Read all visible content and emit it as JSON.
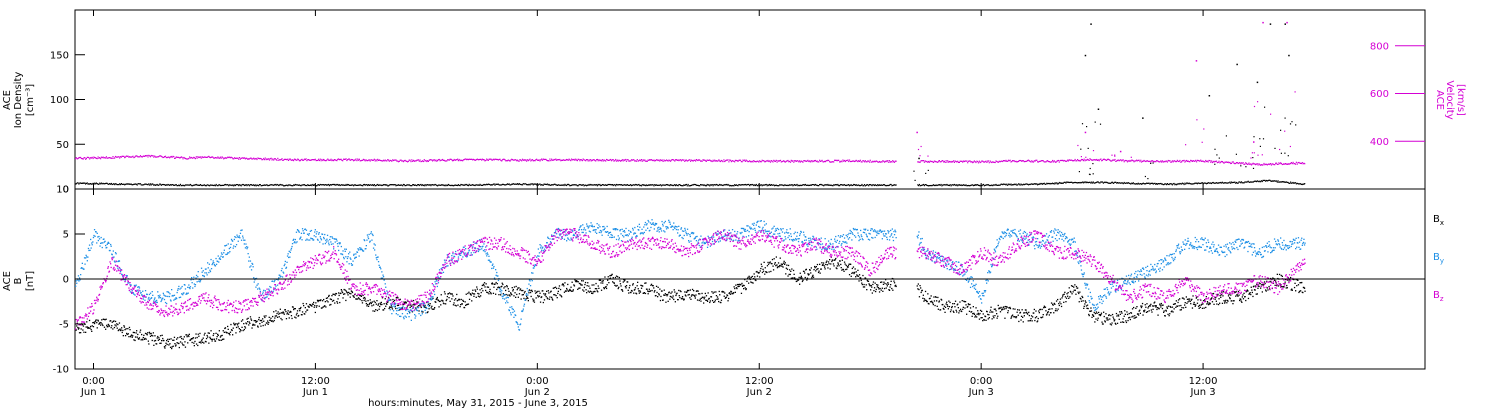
{
  "figure": {
    "xlabel": "hours:minutes, May 31, 2015 - June  3, 2015",
    "x_ticks": [
      {
        "hours": 24,
        "time": "0:00",
        "day": "Jun 1"
      },
      {
        "hours": 36,
        "time": "12:00",
        "day": "Jun 1"
      },
      {
        "hours": 48,
        "time": "0:00",
        "day": "Jun 2"
      },
      {
        "hours": 60,
        "time": "12:00",
        "day": "Jun 2"
      },
      {
        "hours": 72,
        "time": "0:00",
        "day": "Jun 3"
      },
      {
        "hours": 84,
        "time": "12:00",
        "day": "Jun 3"
      }
    ],
    "xlim_hours": [
      23,
      96
    ]
  },
  "colors": {
    "black": "#000000",
    "magenta": "#d400d4",
    "blue": "#1e90e6"
  },
  "chart_data": [
    {
      "type": "scatter",
      "panel": "top",
      "ylabel_left": [
        "ACE",
        "Ion Density",
        "[cm⁻³]"
      ],
      "ylabel_right": [
        "ACE",
        "Velocity",
        "[km/s]"
      ],
      "ylim_left": [
        0,
        200
      ],
      "ylim_right": [
        200,
        950
      ],
      "left_ticks": [
        "0",
        "50",
        "100",
        "150"
      ],
      "left_tick_values": [
        0,
        50,
        100,
        150
      ],
      "right_ticks": [
        "400",
        "600",
        "800"
      ],
      "right_tick_values": [
        400,
        600,
        800
      ],
      "data_gap_hours": [
        67.4,
        68.5
      ],
      "series": [
        {
          "axis": "left",
          "color": "black",
          "x": [
            23,
            26,
            29,
            32,
            35,
            38,
            41,
            44,
            47,
            50,
            53,
            56,
            59,
            62,
            65,
            67,
            69,
            72,
            75,
            77,
            78.5,
            80,
            82,
            84,
            86,
            87.5,
            89.5
          ],
          "y": [
            7,
            6,
            5,
            5,
            5,
            5,
            5,
            5,
            6,
            5,
            5,
            5,
            5,
            5,
            5,
            5,
            5,
            5,
            6,
            8,
            8,
            7,
            6,
            7,
            8,
            10,
            6
          ],
          "spikes": [
            [
              68.6,
              35
            ],
            [
              77.9,
              185
            ],
            [
              78.3,
              90
            ],
            [
              77.6,
              150
            ],
            [
              80.7,
              80
            ],
            [
              84.3,
              105
            ],
            [
              85.8,
              140
            ],
            [
              86.9,
              120
            ],
            [
              87.6,
              185
            ],
            [
              88.4,
              185
            ],
            [
              88.6,
              150
            ]
          ]
        },
        {
          "axis": "right",
          "color": "magenta",
          "x": [
            23,
            25,
            27,
            29,
            30,
            32,
            35,
            38,
            41,
            44,
            47,
            50,
            53,
            56,
            59,
            62,
            65,
            67,
            69,
            72,
            74,
            76,
            78,
            80,
            82,
            84,
            86,
            87,
            89.5
          ],
          "y": [
            330,
            335,
            340,
            332,
            336,
            330,
            325,
            325,
            320,
            325,
            323,
            325,
            322,
            322,
            320,
            318,
            320,
            318,
            318,
            316,
            320,
            318,
            326,
            320,
            318,
            320,
            310,
            305,
            312
          ],
          "spikes": [
            [
              68.5,
              440
            ],
            [
              77.6,
              440
            ],
            [
              79.5,
              360
            ],
            [
              83.6,
              740
            ],
            [
              87.2,
              900
            ],
            [
              88.5,
              900
            ],
            [
              86.7,
              400
            ]
          ]
        }
      ]
    },
    {
      "type": "scatter",
      "panel": "bottom",
      "ylabel": [
        "ACE",
        "B",
        "[nT]"
      ],
      "ylim": [
        -10,
        10
      ],
      "ticks": [
        "-10",
        "-5",
        "0",
        "5",
        "10"
      ],
      "tick_values": [
        -10,
        -5,
        0,
        5,
        10
      ],
      "zero_line": true,
      "legend_position": "right",
      "data_gap_hours": [
        67.4,
        68.5
      ],
      "series": [
        {
          "name": "Bx",
          "label_base": "B",
          "label_sub": "x",
          "color": "black",
          "x": [
            23,
            24,
            25,
            26,
            27,
            28,
            29,
            30,
            31,
            32,
            33,
            34,
            35,
            36,
            37,
            38,
            39,
            40,
            41,
            42,
            43,
            44,
            45,
            46,
            47,
            48,
            49,
            50,
            51,
            52,
            53,
            54,
            55,
            56,
            57,
            58,
            59,
            60,
            61,
            62,
            63,
            64,
            65,
            66,
            67,
            68.5,
            69,
            70,
            71,
            72,
            73,
            74,
            75,
            76,
            77,
            78,
            79,
            80,
            81,
            82,
            83,
            84,
            85,
            86,
            87,
            88,
            89.5
          ],
          "y": [
            -5.5,
            -5,
            -5,
            -6,
            -6.5,
            -7,
            -6.8,
            -6.5,
            -6,
            -5,
            -4.5,
            -4,
            -3.5,
            -3,
            -2,
            -1.5,
            -3,
            -2.5,
            -3,
            -3,
            -2,
            -2.5,
            -1,
            -1,
            -1.5,
            -2,
            -1.5,
            -0.5,
            -1,
            0,
            -1,
            -1,
            -2,
            -1.5,
            -2,
            -2,
            -1,
            1,
            2,
            0,
            1,
            2,
            1,
            -1,
            -0.5,
            -1,
            -2,
            -3,
            -3,
            -4,
            -3.5,
            -4,
            -4,
            -3,
            -1,
            -4,
            -4.5,
            -4,
            -3,
            -3.5,
            -2.5,
            -2.5,
            -2,
            -2,
            -1,
            0,
            -1
          ]
        },
        {
          "name": "By",
          "label_base": "B",
          "label_sub": "y",
          "color": "blue",
          "x": [
            23,
            24,
            25,
            26,
            27,
            28,
            29,
            30,
            31,
            32,
            33,
            34,
            35,
            36,
            37,
            38,
            39,
            40,
            41,
            42,
            43,
            44,
            45,
            46,
            47,
            48,
            49,
            50,
            51,
            52,
            53,
            54,
            55,
            56,
            57,
            58,
            59,
            60,
            61,
            62,
            63,
            64,
            65,
            66,
            67,
            68.5,
            69,
            70,
            71,
            72,
            73,
            74,
            75,
            76,
            77,
            78,
            79,
            80,
            81,
            82,
            83,
            84,
            85,
            86,
            87,
            88,
            89.5
          ],
          "y": [
            -1,
            5,
            3,
            -1,
            -2,
            -2,
            -1,
            1,
            3,
            5,
            -2,
            0,
            5,
            5,
            4,
            2,
            5,
            -3,
            -4,
            -3,
            2,
            3,
            4,
            -1,
            -5,
            3,
            5,
            5,
            6,
            5,
            5,
            6,
            6,
            5,
            4,
            5,
            5,
            6,
            5,
            5,
            4,
            4,
            5,
            5,
            5,
            5,
            3,
            2,
            1,
            -2,
            5,
            5,
            4,
            5,
            4,
            -3,
            -1,
            0,
            1,
            2,
            4,
            4,
            3,
            4,
            3,
            4,
            4
          ]
        },
        {
          "name": "Bz",
          "label_base": "B",
          "label_sub": "z",
          "color": "magenta",
          "x": [
            23,
            24,
            25,
            26,
            27,
            28,
            29,
            30,
            31,
            32,
            33,
            34,
            35,
            36,
            37,
            38,
            39,
            40,
            41,
            42,
            43,
            44,
            45,
            46,
            47,
            48,
            49,
            50,
            51,
            52,
            53,
            54,
            55,
            56,
            57,
            58,
            59,
            60,
            61,
            62,
            63,
            64,
            65,
            66,
            67,
            68.5,
            69,
            70,
            71,
            72,
            73,
            74,
            75,
            76,
            77,
            78,
            79,
            80,
            81,
            82,
            83,
            84,
            85,
            86,
            87,
            88,
            89.5
          ],
          "y": [
            -5,
            -3,
            2,
            -1,
            -3,
            -3.5,
            -3,
            -2,
            -3,
            -3,
            -2,
            -1,
            1,
            2,
            3,
            -1,
            -1,
            -2,
            -3,
            -2,
            2,
            3,
            4,
            4,
            3,
            2,
            5,
            5,
            4,
            3,
            4,
            4,
            4,
            3,
            4,
            5,
            4,
            5,
            4,
            3,
            4,
            3,
            3,
            1,
            3,
            3,
            3,
            2,
            1,
            3,
            2,
            4,
            5,
            3,
            3,
            2,
            0,
            -2,
            -1,
            -2,
            0,
            -2,
            -1,
            -1,
            0,
            -1,
            2
          ]
        }
      ]
    }
  ]
}
